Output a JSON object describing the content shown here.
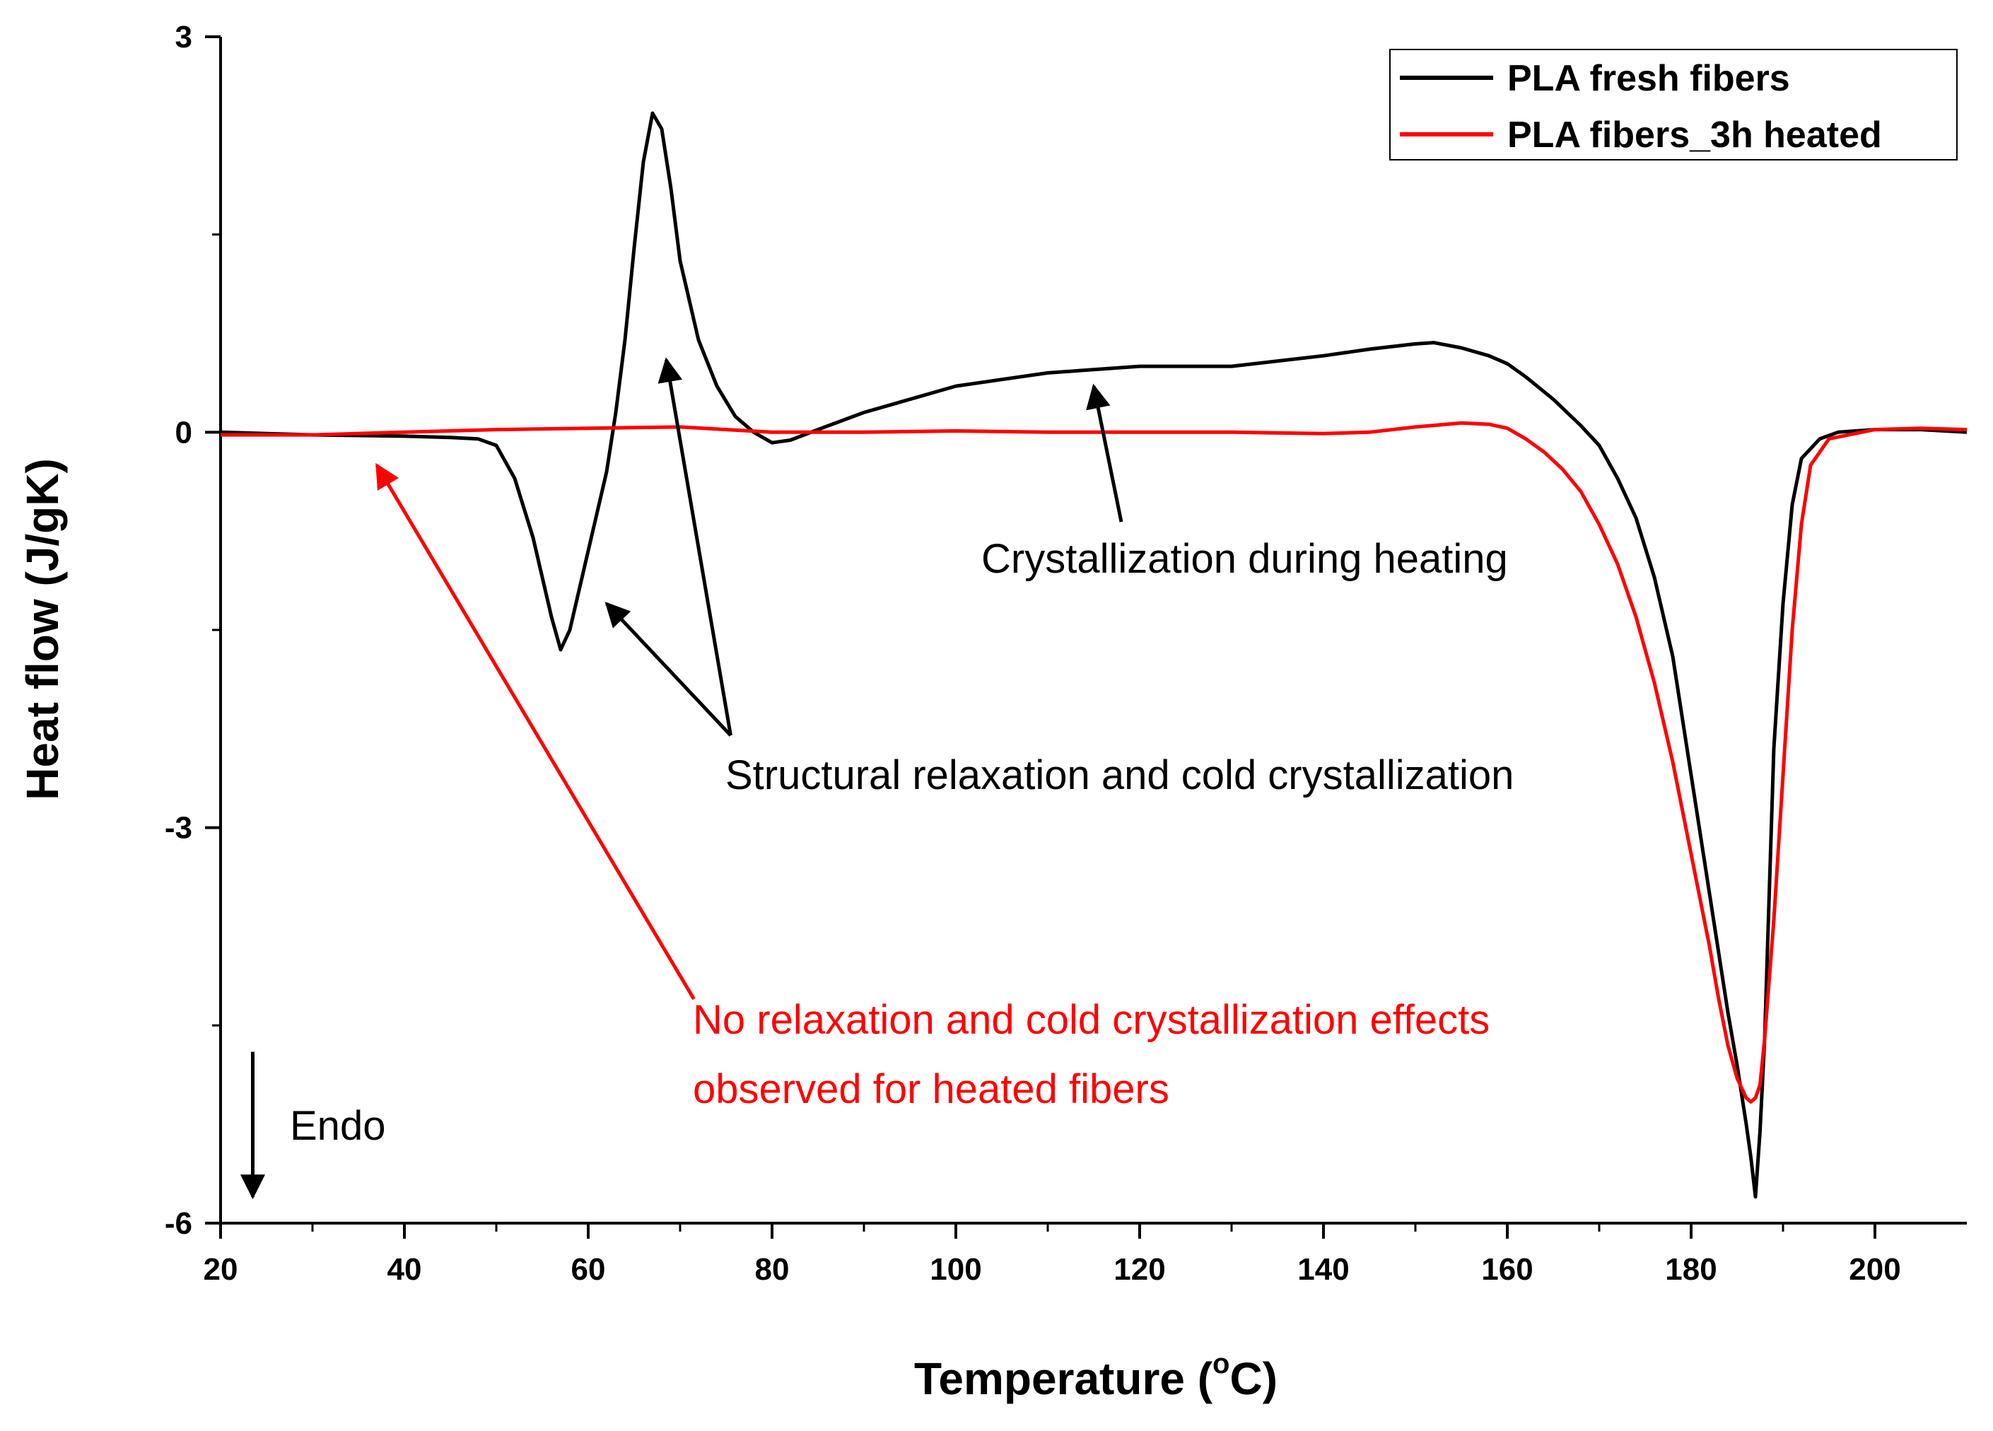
{
  "chart_data": {
    "type": "line",
    "title": "",
    "xlabel": "Temperature (",
    "xlabel_sup": "o",
    "xlabel_end": "C)",
    "ylabel": "Heat flow (J/gK)",
    "xlim": [
      20,
      210
    ],
    "ylim": [
      -6,
      3
    ],
    "x_ticks": [
      20,
      40,
      60,
      80,
      100,
      120,
      140,
      160,
      180,
      200
    ],
    "x_tick_labels": [
      "20",
      "40",
      "60",
      "80",
      "100",
      "120",
      "140",
      "160",
      "180",
      "200"
    ],
    "y_ticks": [
      3,
      0,
      -3,
      -6
    ],
    "y_tick_labels": [
      "3",
      "0",
      "-3",
      "-6"
    ],
    "grid": false,
    "legend_position": "top-right",
    "colors": {
      "fresh": "#000000",
      "heated": "#ff0000"
    },
    "series": [
      {
        "name": "PLA fresh fibers",
        "color": "#000000",
        "x": [
          20,
          30,
          40,
          45,
          48,
          50,
          52,
          54,
          56,
          57,
          58,
          60,
          62,
          63,
          64,
          65,
          66,
          67,
          68,
          69,
          70,
          72,
          74,
          76,
          78,
          80,
          82,
          85,
          90,
          100,
          110,
          120,
          130,
          140,
          145,
          150,
          152,
          155,
          158,
          160,
          162,
          165,
          168,
          170,
          172,
          174,
          176,
          178,
          180,
          182,
          184,
          185,
          186,
          186.5,
          187,
          187.5,
          188,
          188.5,
          189,
          190,
          191,
          192,
          194,
          196,
          200,
          205,
          210
        ],
        "y": [
          0,
          -0.02,
          -0.03,
          -0.04,
          -0.05,
          -0.1,
          -0.35,
          -0.8,
          -1.4,
          -1.65,
          -1.5,
          -0.9,
          -0.3,
          0.15,
          0.7,
          1.4,
          2.05,
          2.42,
          2.3,
          1.85,
          1.3,
          0.7,
          0.35,
          0.12,
          0.0,
          -0.08,
          -0.06,
          0.02,
          0.15,
          0.35,
          0.45,
          0.5,
          0.5,
          0.58,
          0.63,
          0.67,
          0.68,
          0.64,
          0.58,
          0.52,
          0.42,
          0.25,
          0.05,
          -0.1,
          -0.35,
          -0.65,
          -1.1,
          -1.7,
          -2.6,
          -3.5,
          -4.4,
          -4.8,
          -5.25,
          -5.5,
          -5.8,
          -5.3,
          -4.6,
          -3.5,
          -2.4,
          -1.3,
          -0.55,
          -0.2,
          -0.05,
          0.0,
          0.02,
          0.02,
          0.0
        ]
      },
      {
        "name": "PLA fibers_3h heated",
        "color": "#ff0000",
        "x": [
          20,
          30,
          40,
          50,
          60,
          70,
          80,
          90,
          100,
          110,
          120,
          130,
          140,
          145,
          150,
          155,
          158,
          160,
          162,
          164,
          166,
          168,
          170,
          172,
          174,
          176,
          178,
          180,
          182,
          183,
          184,
          185,
          186,
          186.5,
          187,
          187.5,
          188,
          189,
          190,
          191,
          192,
          193,
          195,
          200,
          205,
          210
        ],
        "y": [
          -0.02,
          -0.02,
          0.0,
          0.02,
          0.03,
          0.04,
          0.0,
          0.0,
          0.01,
          0.0,
          0.0,
          0.0,
          -0.01,
          0.0,
          0.04,
          0.07,
          0.06,
          0.03,
          -0.05,
          -0.15,
          -0.28,
          -0.45,
          -0.7,
          -1.0,
          -1.4,
          -1.9,
          -2.5,
          -3.2,
          -3.9,
          -4.3,
          -4.65,
          -4.9,
          -5.05,
          -5.08,
          -5.05,
          -4.95,
          -4.6,
          -3.7,
          -2.6,
          -1.5,
          -0.7,
          -0.25,
          -0.05,
          0.02,
          0.03,
          0.02
        ]
      }
    ],
    "annotations": [
      {
        "text": "Crystallization during heating",
        "color": "#000000"
      },
      {
        "text": "Structural relaxation and cold crystallization",
        "color": "#000000"
      },
      {
        "text": "No relaxation and cold crystallization effects",
        "color": "#ff0000"
      },
      {
        "text": "observed for heated fibers",
        "color": "#ff0000"
      },
      {
        "text": "Endo",
        "color": "#000000"
      }
    ],
    "arrows": [
      {
        "from": [
          118,
          -0.68
        ],
        "to": [
          115,
          0.35
        ],
        "color": "#000000"
      },
      {
        "from": [
          75.5,
          -2.3
        ],
        "to": [
          62,
          -1.3
        ],
        "color": "#000000"
      },
      {
        "from": [
          75.5,
          -2.3
        ],
        "to": [
          68.5,
          0.55
        ],
        "color": "#000000"
      },
      {
        "from": [
          71.5,
          -4.3
        ],
        "to": [
          37,
          -0.25
        ],
        "color": "#ff0000"
      },
      {
        "from": [
          23.5,
          -4.7
        ],
        "to": [
          23.5,
          -5.8
        ],
        "color": "#000000"
      }
    ]
  }
}
